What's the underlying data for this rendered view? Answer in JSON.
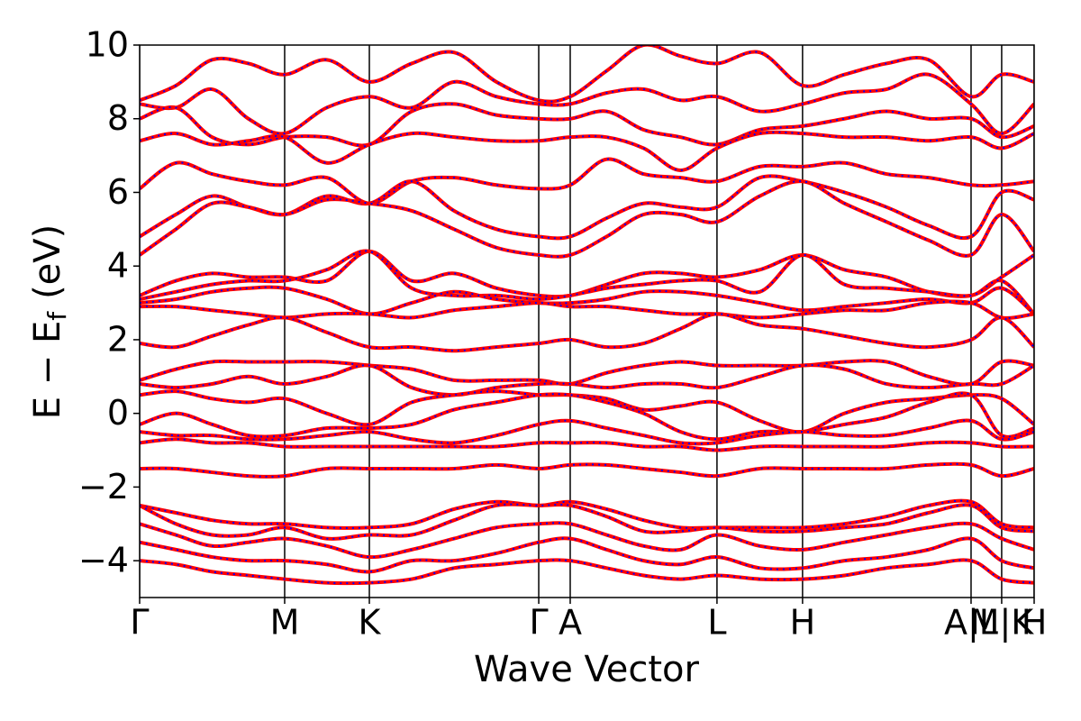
{
  "chart_data": {
    "type": "band-structure",
    "xlabel": "Wave Vector",
    "ylabel": [
      "E − E",
      "f",
      "(eV)"
    ],
    "line_color": "#ff0000",
    "overlay_color": "#0000ff",
    "xlim": [
      0,
      6.168
    ],
    "ylim": [
      -5,
      10
    ],
    "yticks": [
      {
        "value": -4,
        "label": "−4"
      },
      {
        "value": -2,
        "label": "−2"
      },
      0,
      2,
      4,
      6,
      8,
      10
    ],
    "xticks": [
      {
        "value": 0,
        "label": "Γ"
      },
      {
        "value": 1.0,
        "label": "M"
      },
      {
        "value": 1.584,
        "label": "K"
      },
      {
        "value": 2.752,
        "label": "Γ"
      },
      {
        "value": 2.969,
        "label": "A"
      },
      {
        "value": 3.981,
        "label": "L"
      },
      {
        "value": 4.571,
        "label": "H"
      },
      {
        "value": 5.733,
        "label": "A|L"
      },
      {
        "value": 5.944,
        "label": "M|K"
      },
      {
        "value": 6.168,
        "label": "H"
      }
    ],
    "x": [
      0,
      0.25,
      0.5,
      0.75,
      1.0,
      1.29,
      1.584,
      1.876,
      2.168,
      2.46,
      2.752,
      2.969,
      3.22,
      3.475,
      3.73,
      3.981,
      4.276,
      4.571,
      4.86,
      5.15,
      5.44,
      5.733,
      5.944,
      6.168
    ],
    "bands": [
      [
        8.5,
        8.9,
        9.6,
        9.5,
        9.2,
        9.6,
        9.0,
        9.5,
        9.8,
        9.0,
        8.5,
        8.6,
        9.3,
        10.0,
        9.7,
        9.5,
        9.8,
        8.9,
        9.2,
        9.5,
        9.6,
        8.6,
        9.2,
        9.0
      ],
      [
        8.4,
        8.3,
        8.8,
        8.0,
        7.6,
        8.3,
        8.6,
        8.3,
        9.0,
        8.6,
        8.4,
        8.4,
        8.7,
        8.8,
        8.5,
        8.6,
        8.2,
        8.4,
        8.7,
        8.8,
        9.2,
        8.4,
        7.6,
        8.4
      ],
      [
        8.0,
        8.3,
        7.5,
        7.3,
        7.5,
        7.5,
        7.3,
        8.2,
        8.4,
        8.1,
        8.0,
        8.0,
        8.2,
        7.7,
        7.5,
        7.3,
        7.7,
        7.8,
        8.0,
        8.2,
        8.0,
        8.0,
        7.5,
        7.8
      ],
      [
        7.4,
        7.6,
        7.3,
        7.4,
        7.5,
        6.8,
        7.3,
        7.6,
        7.5,
        7.4,
        7.4,
        7.5,
        7.5,
        7.2,
        6.6,
        7.2,
        7.6,
        7.6,
        7.5,
        7.5,
        7.4,
        7.5,
        7.2,
        7.6
      ],
      [
        6.1,
        6.8,
        6.5,
        6.3,
        6.2,
        6.4,
        5.7,
        6.3,
        6.4,
        6.2,
        6.1,
        6.2,
        6.9,
        6.5,
        6.4,
        6.3,
        6.7,
        6.7,
        6.8,
        6.5,
        6.4,
        6.2,
        6.2,
        6.3
      ],
      [
        4.8,
        5.4,
        5.9,
        5.6,
        5.4,
        5.9,
        5.7,
        6.3,
        5.5,
        5.0,
        4.8,
        4.8,
        5.3,
        5.7,
        5.6,
        5.6,
        6.4,
        6.3,
        6.0,
        5.6,
        5.1,
        4.8,
        6.0,
        5.8
      ],
      [
        4.3,
        5.0,
        5.7,
        5.6,
        5.4,
        5.8,
        5.7,
        5.5,
        5.0,
        4.5,
        4.3,
        4.3,
        4.8,
        5.4,
        5.4,
        5.2,
        5.9,
        6.3,
        5.7,
        5.2,
        4.7,
        4.3,
        5.4,
        4.4
      ],
      [
        3.2,
        3.6,
        3.8,
        3.7,
        3.7,
        3.6,
        4.4,
        3.6,
        3.8,
        3.4,
        3.2,
        3.2,
        3.5,
        3.8,
        3.8,
        3.7,
        3.9,
        4.3,
        3.9,
        3.7,
        3.3,
        3.2,
        3.7,
        4.3
      ],
      [
        3.1,
        3.3,
        3.5,
        3.6,
        3.6,
        3.9,
        4.4,
        3.4,
        3.2,
        3.2,
        3.1,
        3.2,
        3.4,
        3.5,
        3.6,
        3.6,
        3.3,
        4.3,
        3.5,
        3.4,
        3.3,
        3.2,
        3.6,
        2.7
      ],
      [
        3.0,
        3.1,
        3.3,
        3.4,
        3.4,
        3.1,
        2.7,
        3.0,
        3.3,
        3.1,
        3.0,
        3.0,
        3.1,
        3.3,
        3.3,
        3.2,
        3.0,
        2.8,
        2.9,
        3.0,
        3.1,
        3.0,
        3.4,
        2.7
      ],
      [
        2.9,
        2.9,
        2.8,
        2.7,
        2.6,
        2.7,
        2.7,
        2.6,
        2.8,
        2.9,
        3.0,
        2.9,
        2.9,
        2.8,
        2.7,
        2.7,
        2.6,
        2.7,
        2.8,
        2.8,
        3.0,
        3.0,
        2.6,
        2.7
      ],
      [
        1.9,
        1.8,
        2.1,
        2.4,
        2.6,
        2.2,
        1.8,
        1.8,
        1.7,
        1.8,
        1.9,
        2.0,
        1.8,
        1.9,
        2.3,
        2.7,
        2.4,
        2.3,
        2.1,
        1.9,
        1.8,
        2.0,
        2.6,
        1.8
      ],
      [
        0.9,
        1.2,
        1.4,
        1.4,
        1.4,
        1.4,
        1.3,
        1.2,
        0.9,
        0.9,
        0.9,
        0.8,
        1.1,
        1.3,
        1.4,
        1.3,
        1.3,
        1.3,
        1.4,
        1.4,
        1.0,
        0.8,
        1.4,
        1.3
      ],
      [
        0.8,
        0.7,
        0.8,
        1.0,
        0.8,
        1.0,
        1.3,
        0.7,
        0.5,
        0.7,
        0.8,
        0.8,
        0.7,
        0.8,
        0.8,
        0.7,
        1.0,
        1.3,
        1.2,
        0.8,
        0.7,
        0.8,
        0.8,
        1.3
      ],
      [
        0.5,
        0.6,
        0.4,
        0.3,
        0.4,
        0.0,
        -0.3,
        0.3,
        0.5,
        0.6,
        0.5,
        0.5,
        0.4,
        0.1,
        0.2,
        0.3,
        -0.2,
        -0.5,
        0.0,
        0.3,
        0.4,
        0.5,
        0.4,
        -0.3
      ],
      [
        -0.3,
        0.0,
        -0.3,
        -0.6,
        -0.6,
        -0.4,
        -0.4,
        -0.3,
        0.1,
        0.3,
        0.5,
        0.5,
        0.3,
        0.0,
        -0.5,
        -0.7,
        -0.5,
        -0.5,
        -0.3,
        -0.1,
        0.3,
        0.5,
        -0.6,
        -0.4
      ],
      [
        -0.5,
        -0.6,
        -0.6,
        -0.7,
        -0.7,
        -0.6,
        -0.5,
        -0.7,
        -0.8,
        -0.6,
        -0.3,
        -0.2,
        -0.4,
        -0.6,
        -0.8,
        -0.8,
        -0.6,
        -0.5,
        -0.6,
        -0.6,
        -0.4,
        -0.2,
        -0.7,
        -0.5
      ],
      [
        -0.8,
        -0.7,
        -0.8,
        -0.8,
        -0.9,
        -0.9,
        -0.9,
        -0.9,
        -0.9,
        -0.9,
        -0.8,
        -0.8,
        -0.8,
        -0.9,
        -0.9,
        -1.0,
        -0.9,
        -0.9,
        -0.9,
        -0.9,
        -0.8,
        -0.8,
        -0.9,
        -0.9
      ],
      [
        -1.5,
        -1.5,
        -1.6,
        -1.7,
        -1.7,
        -1.5,
        -1.5,
        -1.5,
        -1.5,
        -1.4,
        -1.5,
        -1.4,
        -1.4,
        -1.5,
        -1.6,
        -1.7,
        -1.5,
        -1.5,
        -1.5,
        -1.5,
        -1.4,
        -1.4,
        -1.7,
        -1.5
      ],
      [
        -2.5,
        -2.7,
        -2.9,
        -3.0,
        -3.0,
        -3.1,
        -3.1,
        -3.0,
        -2.6,
        -2.4,
        -2.5,
        -2.4,
        -2.6,
        -2.9,
        -3.1,
        -3.1,
        -3.1,
        -3.1,
        -3.0,
        -2.8,
        -2.5,
        -2.4,
        -3.0,
        -3.1
      ],
      [
        -2.5,
        -3.0,
        -3.3,
        -3.3,
        -3.1,
        -3.4,
        -3.3,
        -3.3,
        -2.9,
        -2.5,
        -2.5,
        -2.5,
        -2.8,
        -3.2,
        -3.2,
        -3.1,
        -3.2,
        -3.2,
        -3.1,
        -3.0,
        -2.7,
        -2.5,
        -3.1,
        -3.2
      ],
      [
        -3.0,
        -3.3,
        -3.6,
        -3.5,
        -3.4,
        -3.6,
        -3.9,
        -3.7,
        -3.4,
        -3.1,
        -3.0,
        -3.0,
        -3.3,
        -3.6,
        -3.7,
        -3.3,
        -3.6,
        -3.7,
        -3.5,
        -3.3,
        -3.1,
        -3.0,
        -3.4,
        -3.7
      ],
      [
        -3.5,
        -3.7,
        -3.9,
        -4.0,
        -4.0,
        -4.1,
        -4.3,
        -4.0,
        -4.0,
        -3.8,
        -3.5,
        -3.4,
        -3.7,
        -4.0,
        -4.1,
        -3.9,
        -4.2,
        -4.2,
        -4.0,
        -3.9,
        -3.7,
        -3.4,
        -4.0,
        -4.2
      ],
      [
        -4.0,
        -4.1,
        -4.3,
        -4.4,
        -4.5,
        -4.6,
        -4.6,
        -4.5,
        -4.2,
        -4.1,
        -4.0,
        -4.0,
        -4.2,
        -4.4,
        -4.5,
        -4.4,
        -4.5,
        -4.5,
        -4.4,
        -4.2,
        -4.1,
        -4.0,
        -4.5,
        -4.6
      ]
    ]
  }
}
